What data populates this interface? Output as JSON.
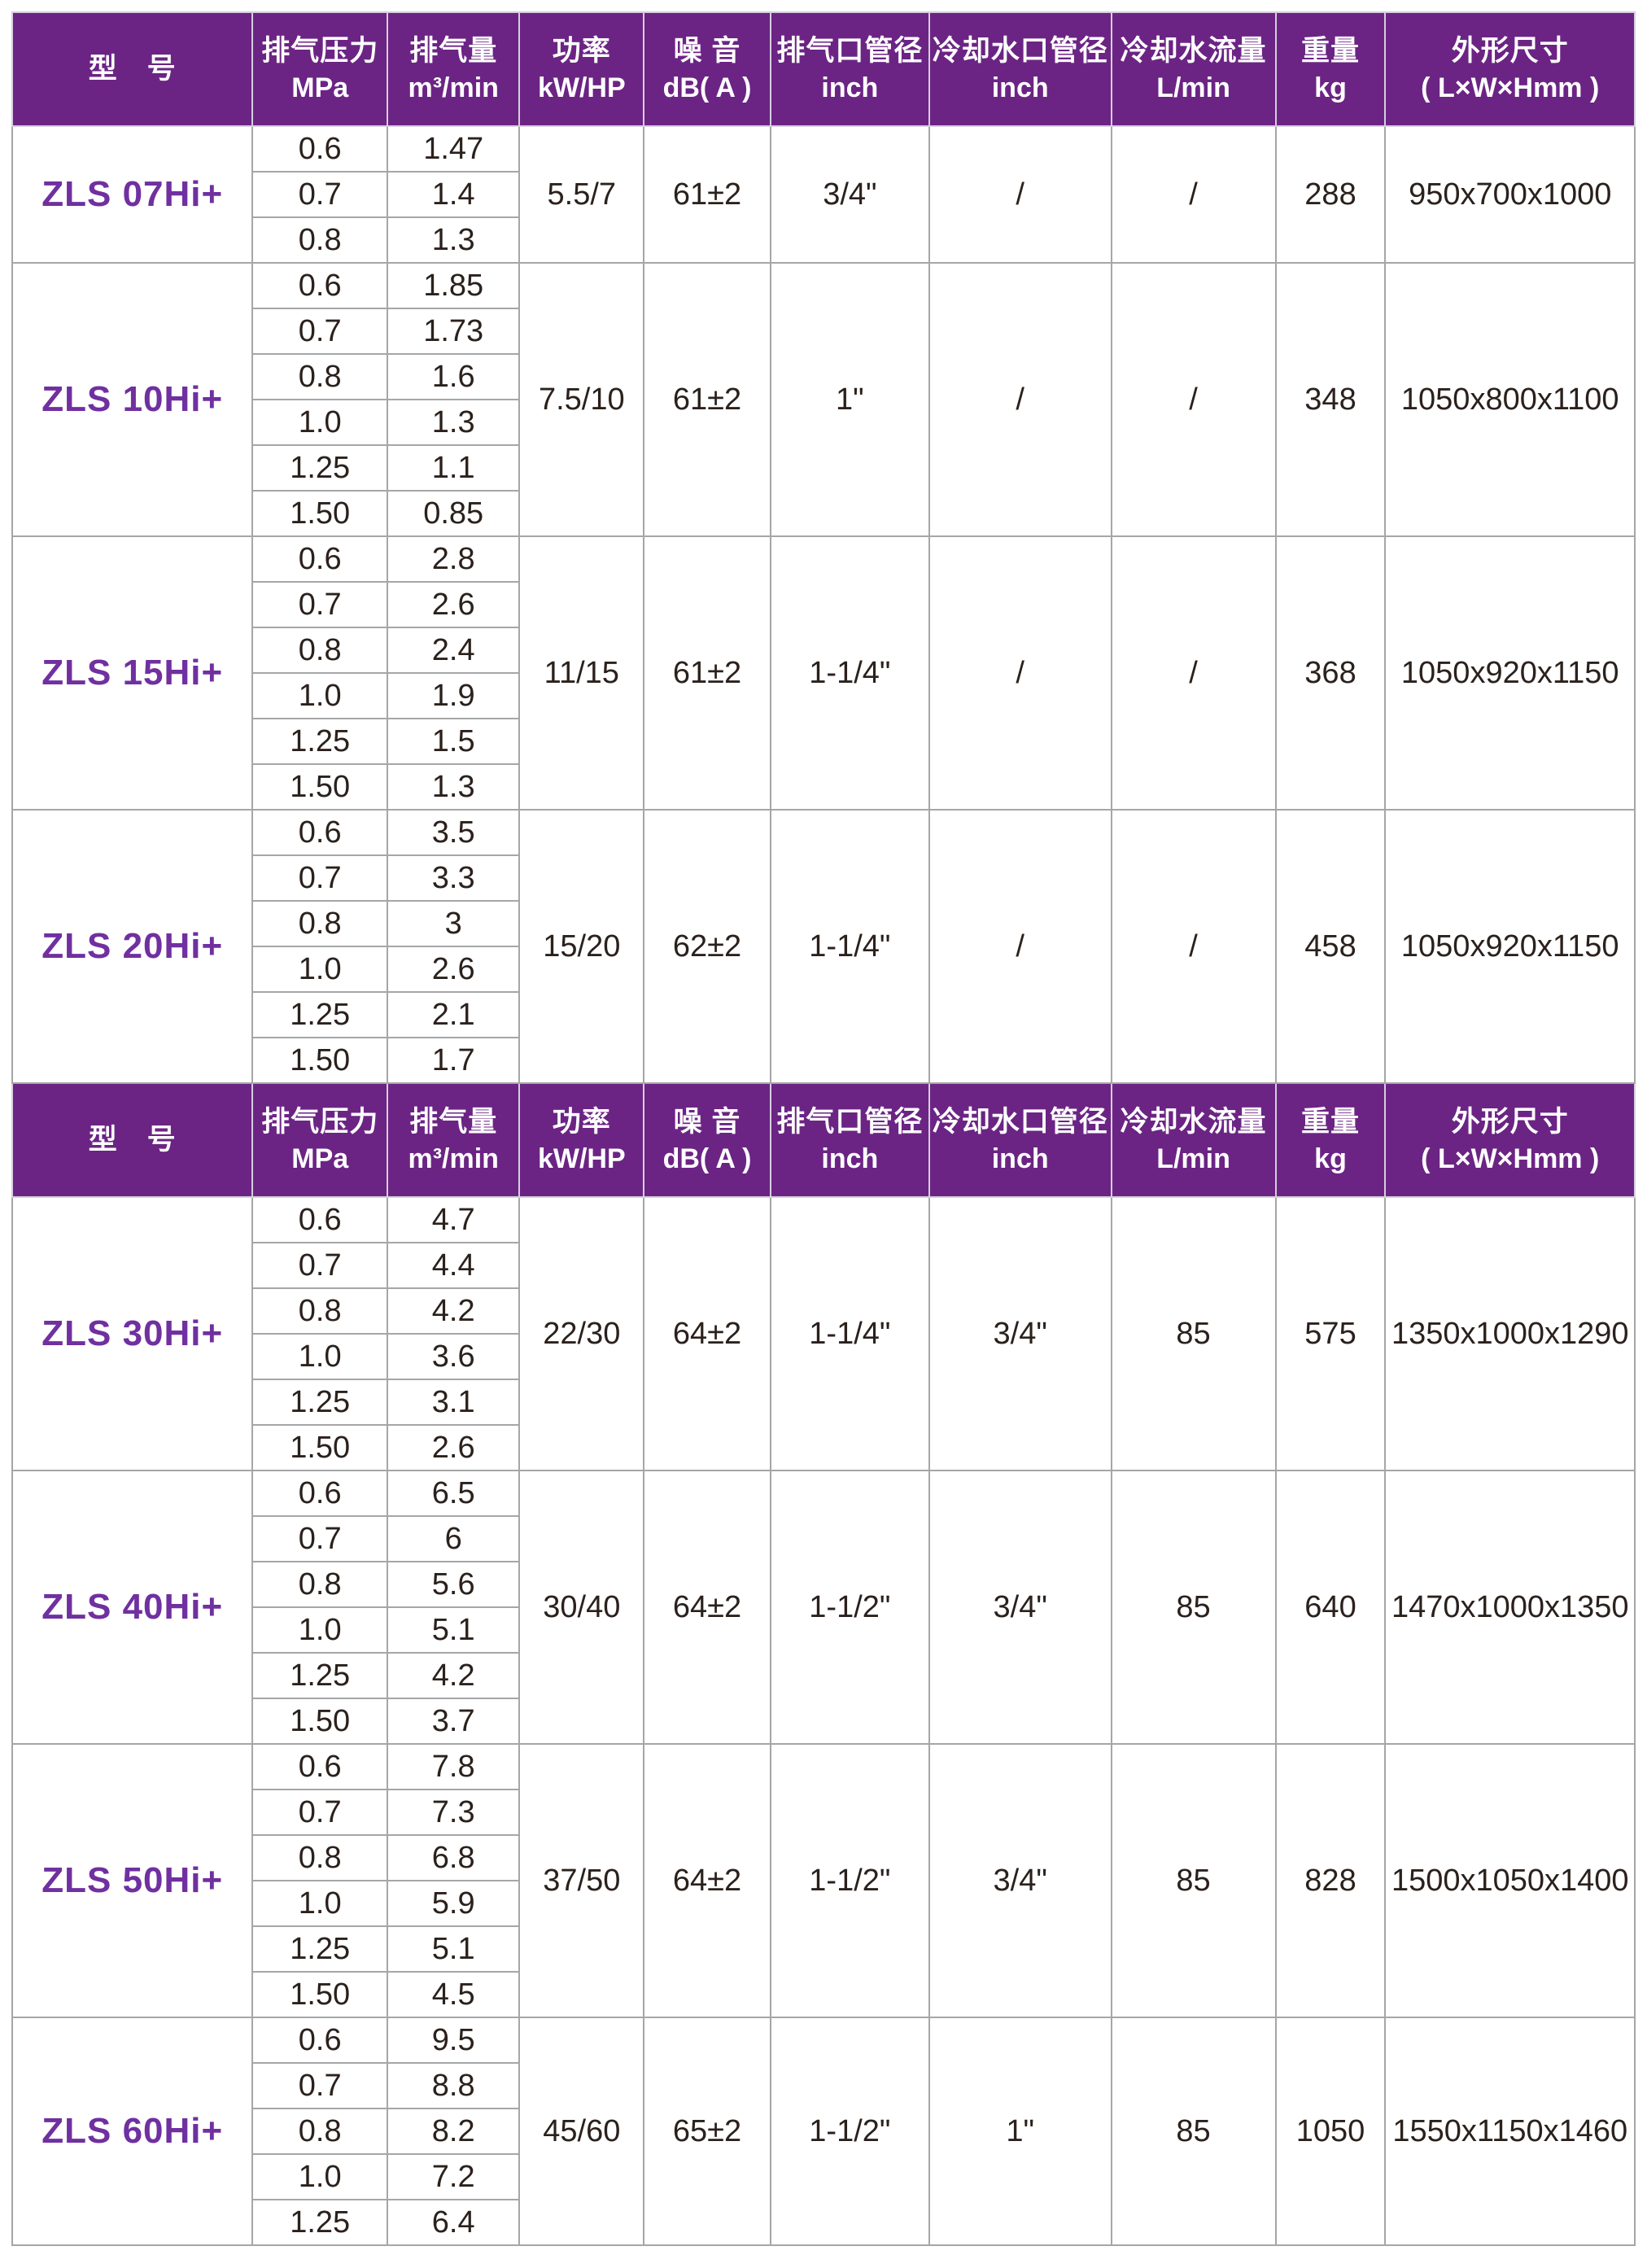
{
  "header": {
    "columns": [
      {
        "l1": "型　号",
        "l2": ""
      },
      {
        "l1": "排气压力",
        "l2": "MPa"
      },
      {
        "l1": "排气量",
        "l2": "m³/min"
      },
      {
        "l1": "功率",
        "l2": "kW/HP"
      },
      {
        "l1": "噪 音",
        "l2": "dB( A )"
      },
      {
        "l1": "排气口管径",
        "l2": "inch"
      },
      {
        "l1": "冷却水口管径",
        "l2": "inch"
      },
      {
        "l1": "冷却水流量",
        "l2": "L/min"
      },
      {
        "l1": "重量",
        "l2": "kg"
      },
      {
        "l1": "外形尺寸",
        "l2": "( L×W×Hmm )"
      }
    ]
  },
  "colors": {
    "header_bg": "#6b2484",
    "header_text": "#ffffff",
    "model_text": "#7030a0",
    "body_text": "#2b211c",
    "grid_line": "#a6a6a6"
  },
  "sections": [
    {
      "models": [
        {
          "name": "ZLS 07Hi+",
          "rows": [
            {
              "p": "0.6",
              "q": "1.47"
            },
            {
              "p": "0.7",
              "q": "1.4"
            },
            {
              "p": "0.8",
              "q": "1.3"
            }
          ],
          "specs": {
            "power": "5.5/7",
            "noise": "61±2",
            "outlet": "3/4\"",
            "cooling_port": "/",
            "cooling_flow": "/",
            "weight": "288",
            "dims": "950x700x1000"
          }
        },
        {
          "name": "ZLS 10Hi+",
          "rows": [
            {
              "p": "0.6",
              "q": "1.85"
            },
            {
              "p": "0.7",
              "q": "1.73"
            },
            {
              "p": "0.8",
              "q": "1.6"
            },
            {
              "p": "1.0",
              "q": "1.3"
            },
            {
              "p": "1.25",
              "q": "1.1"
            },
            {
              "p": "1.50",
              "q": "0.85"
            }
          ],
          "specs": {
            "power": "7.5/10",
            "noise": "61±2",
            "outlet": "1\"",
            "cooling_port": "/",
            "cooling_flow": "/",
            "weight": "348",
            "dims": "1050x800x1100"
          }
        },
        {
          "name": "ZLS 15Hi+",
          "rows": [
            {
              "p": "0.6",
              "q": "2.8"
            },
            {
              "p": "0.7",
              "q": "2.6"
            },
            {
              "p": "0.8",
              "q": "2.4"
            },
            {
              "p": "1.0",
              "q": "1.9"
            },
            {
              "p": "1.25",
              "q": "1.5"
            },
            {
              "p": "1.50",
              "q": "1.3"
            }
          ],
          "specs": {
            "power": "11/15",
            "noise": "61±2",
            "outlet": "1-1/4\"",
            "cooling_port": "/",
            "cooling_flow": "/",
            "weight": "368",
            "dims": "1050x920x1150"
          }
        },
        {
          "name": "ZLS 20Hi+",
          "rows": [
            {
              "p": "0.6",
              "q": "3.5"
            },
            {
              "p": "0.7",
              "q": "3.3"
            },
            {
              "p": "0.8",
              "q": "3"
            },
            {
              "p": "1.0",
              "q": "2.6"
            },
            {
              "p": "1.25",
              "q": "2.1"
            },
            {
              "p": "1.50",
              "q": "1.7"
            }
          ],
          "specs": {
            "power": "15/20",
            "noise": "62±2",
            "outlet": "1-1/4\"",
            "cooling_port": "/",
            "cooling_flow": "/",
            "weight": "458",
            "dims": "1050x920x1150"
          }
        }
      ]
    },
    {
      "models": [
        {
          "name": "ZLS 30Hi+",
          "rows": [
            {
              "p": "0.6",
              "q": "4.7"
            },
            {
              "p": "0.7",
              "q": "4.4"
            },
            {
              "p": "0.8",
              "q": "4.2"
            },
            {
              "p": "1.0",
              "q": "3.6"
            },
            {
              "p": "1.25",
              "q": "3.1"
            },
            {
              "p": "1.50",
              "q": "2.6"
            }
          ],
          "specs": {
            "power": "22/30",
            "noise": "64±2",
            "outlet": "1-1/4\"",
            "cooling_port": "3/4\"",
            "cooling_flow": "85",
            "weight": "575",
            "dims": "1350x1000x1290"
          }
        },
        {
          "name": "ZLS 40Hi+",
          "rows": [
            {
              "p": "0.6",
              "q": "6.5"
            },
            {
              "p": "0.7",
              "q": "6"
            },
            {
              "p": "0.8",
              "q": "5.6"
            },
            {
              "p": "1.0",
              "q": "5.1"
            },
            {
              "p": "1.25",
              "q": "4.2"
            },
            {
              "p": "1.50",
              "q": "3.7"
            }
          ],
          "specs": {
            "power": "30/40",
            "noise": "64±2",
            "outlet": "1-1/2\"",
            "cooling_port": "3/4\"",
            "cooling_flow": "85",
            "weight": "640",
            "dims": "1470x1000x1350"
          }
        },
        {
          "name": "ZLS 50Hi+",
          "rows": [
            {
              "p": "0.6",
              "q": "7.8"
            },
            {
              "p": "0.7",
              "q": "7.3"
            },
            {
              "p": "0.8",
              "q": "6.8"
            },
            {
              "p": "1.0",
              "q": "5.9"
            },
            {
              "p": "1.25",
              "q": "5.1"
            },
            {
              "p": "1.50",
              "q": "4.5"
            }
          ],
          "specs": {
            "power": "37/50",
            "noise": "64±2",
            "outlet": "1-1/2\"",
            "cooling_port": "3/4\"",
            "cooling_flow": "85",
            "weight": "828",
            "dims": "1500x1050x1400"
          }
        },
        {
          "name": "ZLS 60Hi+",
          "rows": [
            {
              "p": "0.6",
              "q": "9.5"
            },
            {
              "p": "0.7",
              "q": "8.8"
            },
            {
              "p": "0.8",
              "q": "8.2"
            },
            {
              "p": "1.0",
              "q": "7.2"
            },
            {
              "p": "1.25",
              "q": "6.4"
            }
          ],
          "specs": {
            "power": "45/60",
            "noise": "65±2",
            "outlet": "1-1/2\"",
            "cooling_port": "1\"",
            "cooling_flow": "85",
            "weight": "1050",
            "dims": "1550x1150x1460"
          }
        }
      ]
    }
  ],
  "chart_data": {
    "type": "table",
    "title": "ZLS Hi+ 系列规格表",
    "columns": [
      "型号",
      "排气压力 MPa",
      "排气量 m³/min",
      "功率 kW/HP",
      "噪音 dB(A)",
      "排气口管径 inch",
      "冷却水口管径 inch",
      "冷却水流量 L/min",
      "重量 kg",
      "外形尺寸 (L×W×Hmm)"
    ],
    "models": [
      {
        "model": "ZLS 07Hi+",
        "pressure_MPa": [
          "0.6",
          "0.7",
          "0.8"
        ],
        "flow_m3_min": [
          "1.47",
          "1.4",
          "1.3"
        ],
        "power_kW_HP": "5.5/7",
        "noise_dBA": "61±2",
        "outlet_inch": "3/4\"",
        "cooling_port_inch": "/",
        "cooling_flow_L_min": "/",
        "weight_kg": "288",
        "dimensions_mm": "950x700x1000"
      },
      {
        "model": "ZLS 10Hi+",
        "pressure_MPa": [
          "0.6",
          "0.7",
          "0.8",
          "1.0",
          "1.25",
          "1.50"
        ],
        "flow_m3_min": [
          "1.85",
          "1.73",
          "1.6",
          "1.3",
          "1.1",
          "0.85"
        ],
        "power_kW_HP": "7.5/10",
        "noise_dBA": "61±2",
        "outlet_inch": "1\"",
        "cooling_port_inch": "/",
        "cooling_flow_L_min": "/",
        "weight_kg": "348",
        "dimensions_mm": "1050x800x1100"
      },
      {
        "model": "ZLS 15Hi+",
        "pressure_MPa": [
          "0.6",
          "0.7",
          "0.8",
          "1.0",
          "1.25",
          "1.50"
        ],
        "flow_m3_min": [
          "2.8",
          "2.6",
          "2.4",
          "1.9",
          "1.5",
          "1.3"
        ],
        "power_kW_HP": "11/15",
        "noise_dBA": "61±2",
        "outlet_inch": "1-1/4\"",
        "cooling_port_inch": "/",
        "cooling_flow_L_min": "/",
        "weight_kg": "368",
        "dimensions_mm": "1050x920x1150"
      },
      {
        "model": "ZLS 20Hi+",
        "pressure_MPa": [
          "0.6",
          "0.7",
          "0.8",
          "1.0",
          "1.25",
          "1.50"
        ],
        "flow_m3_min": [
          "3.5",
          "3.3",
          "3",
          "2.6",
          "2.1",
          "1.7"
        ],
        "power_kW_HP": "15/20",
        "noise_dBA": "62±2",
        "outlet_inch": "1-1/4\"",
        "cooling_port_inch": "/",
        "cooling_flow_L_min": "/",
        "weight_kg": "458",
        "dimensions_mm": "1050x920x1150"
      },
      {
        "model": "ZLS 30Hi+",
        "pressure_MPa": [
          "0.6",
          "0.7",
          "0.8",
          "1.0",
          "1.25",
          "1.50"
        ],
        "flow_m3_min": [
          "4.7",
          "4.4",
          "4.2",
          "3.6",
          "3.1",
          "2.6"
        ],
        "power_kW_HP": "22/30",
        "noise_dBA": "64±2",
        "outlet_inch": "1-1/4\"",
        "cooling_port_inch": "3/4\"",
        "cooling_flow_L_min": "85",
        "weight_kg": "575",
        "dimensions_mm": "1350x1000x1290"
      },
      {
        "model": "ZLS 40Hi+",
        "pressure_MPa": [
          "0.6",
          "0.7",
          "0.8",
          "1.0",
          "1.25",
          "1.50"
        ],
        "flow_m3_min": [
          "6.5",
          "6",
          "5.6",
          "5.1",
          "4.2",
          "3.7"
        ],
        "power_kW_HP": "30/40",
        "noise_dBA": "64±2",
        "outlet_inch": "1-1/2\"",
        "cooling_port_inch": "3/4\"",
        "cooling_flow_L_min": "85",
        "weight_kg": "640",
        "dimensions_mm": "1470x1000x1350"
      },
      {
        "model": "ZLS 50Hi+",
        "pressure_MPa": [
          "0.6",
          "0.7",
          "0.8",
          "1.0",
          "1.25",
          "1.50"
        ],
        "flow_m3_min": [
          "7.8",
          "7.3",
          "6.8",
          "5.9",
          "5.1",
          "4.5"
        ],
        "power_kW_HP": "37/50",
        "noise_dBA": "64±2",
        "outlet_inch": "1-1/2\"",
        "cooling_port_inch": "3/4\"",
        "cooling_flow_L_min": "85",
        "weight_kg": "828",
        "dimensions_mm": "1500x1050x1400"
      },
      {
        "model": "ZLS 60Hi+",
        "pressure_MPa": [
          "0.6",
          "0.7",
          "0.8",
          "1.0",
          "1.25"
        ],
        "flow_m3_min": [
          "9.5",
          "8.8",
          "8.2",
          "7.2",
          "6.4"
        ],
        "power_kW_HP": "45/60",
        "noise_dBA": "65±2",
        "outlet_inch": "1-1/2\"",
        "cooling_port_inch": "1\"",
        "cooling_flow_L_min": "85",
        "weight_kg": "1050",
        "dimensions_mm": "1550x1150x1460"
      }
    ]
  },
  "layout": {
    "col_widths_pct": [
      14.82,
      8.3,
      8.15,
      7.66,
      7.81,
      9.78,
      11.22,
      10.13,
      6.77,
      15.37
    ]
  }
}
